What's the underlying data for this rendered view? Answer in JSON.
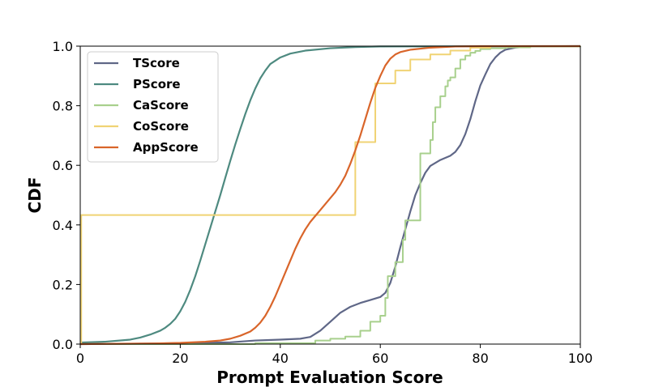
{
  "chart_data": {
    "type": "line",
    "title": "",
    "xlabel": "Prompt Evaluation Score",
    "ylabel": "CDF",
    "xlim": [
      0,
      100
    ],
    "ylim": [
      0,
      1.0
    ],
    "xticks": [
      "0",
      "20",
      "40",
      "60",
      "80",
      "100"
    ],
    "yticks": [
      "0.0",
      "0.2",
      "0.4",
      "0.6",
      "0.8",
      "1.0"
    ],
    "grid": false,
    "legend_position": "top-left",
    "series": [
      {
        "name": "TScore",
        "color": "#5f6787",
        "step": false,
        "points": [
          [
            0,
            0
          ],
          [
            10,
            0.001
          ],
          [
            20,
            0.003
          ],
          [
            30,
            0.006
          ],
          [
            35,
            0.012
          ],
          [
            40,
            0.015
          ],
          [
            44,
            0.018
          ],
          [
            46,
            0.024
          ],
          [
            48,
            0.045
          ],
          [
            50,
            0.075
          ],
          [
            52,
            0.105
          ],
          [
            54,
            0.125
          ],
          [
            56,
            0.138
          ],
          [
            58,
            0.148
          ],
          [
            60,
            0.158
          ],
          [
            61,
            0.172
          ],
          [
            62,
            0.205
          ],
          [
            63,
            0.26
          ],
          [
            64,
            0.325
          ],
          [
            65,
            0.385
          ],
          [
            66,
            0.445
          ],
          [
            67,
            0.5
          ],
          [
            68,
            0.54
          ],
          [
            69,
            0.575
          ],
          [
            70,
            0.598
          ],
          [
            72,
            0.618
          ],
          [
            74,
            0.632
          ],
          [
            75,
            0.645
          ],
          [
            76,
            0.668
          ],
          [
            77,
            0.705
          ],
          [
            78,
            0.755
          ],
          [
            79,
            0.815
          ],
          [
            80,
            0.868
          ],
          [
            81,
            0.905
          ],
          [
            82,
            0.94
          ],
          [
            83,
            0.962
          ],
          [
            84,
            0.978
          ],
          [
            85,
            0.988
          ],
          [
            87,
            0.995
          ],
          [
            90,
            0.999
          ],
          [
            100,
            1.0
          ]
        ]
      },
      {
        "name": "PScore",
        "color": "#4e8a80",
        "step": false,
        "points": [
          [
            0,
            0.005
          ],
          [
            5,
            0.008
          ],
          [
            10,
            0.015
          ],
          [
            12,
            0.022
          ],
          [
            14,
            0.032
          ],
          [
            16,
            0.045
          ],
          [
            17,
            0.055
          ],
          [
            18,
            0.068
          ],
          [
            19,
            0.085
          ],
          [
            20,
            0.11
          ],
          [
            21,
            0.142
          ],
          [
            22,
            0.182
          ],
          [
            23,
            0.228
          ],
          [
            24,
            0.28
          ],
          [
            25,
            0.335
          ],
          [
            26,
            0.39
          ],
          [
            27,
            0.445
          ],
          [
            28,
            0.5
          ],
          [
            29,
            0.558
          ],
          [
            30,
            0.615
          ],
          [
            31,
            0.67
          ],
          [
            32,
            0.722
          ],
          [
            33,
            0.772
          ],
          [
            34,
            0.818
          ],
          [
            35,
            0.858
          ],
          [
            36,
            0.892
          ],
          [
            37,
            0.918
          ],
          [
            38,
            0.94
          ],
          [
            40,
            0.962
          ],
          [
            42,
            0.975
          ],
          [
            45,
            0.985
          ],
          [
            50,
            0.993
          ],
          [
            55,
            0.997
          ],
          [
            60,
            0.999
          ],
          [
            100,
            1.0
          ]
        ]
      },
      {
        "name": "CaScore",
        "color": "#a8d08d",
        "step": true,
        "points": [
          [
            0,
            0.0
          ],
          [
            35,
            0.003
          ],
          [
            47,
            0.012
          ],
          [
            50,
            0.018
          ],
          [
            53,
            0.025
          ],
          [
            56,
            0.045
          ],
          [
            58,
            0.075
          ],
          [
            60,
            0.095
          ],
          [
            61,
            0.155
          ],
          [
            61.5,
            0.228
          ],
          [
            63,
            0.275
          ],
          [
            64.5,
            0.35
          ],
          [
            65,
            0.415
          ],
          [
            68,
            0.64
          ],
          [
            70,
            0.685
          ],
          [
            70.5,
            0.745
          ],
          [
            71,
            0.795
          ],
          [
            72,
            0.832
          ],
          [
            73,
            0.865
          ],
          [
            73.5,
            0.885
          ],
          [
            74,
            0.895
          ],
          [
            75,
            0.925
          ],
          [
            76,
            0.955
          ],
          [
            77,
            0.968
          ],
          [
            78,
            0.978
          ],
          [
            79,
            0.984
          ],
          [
            80,
            0.99
          ],
          [
            82,
            0.993
          ],
          [
            85,
            0.996
          ],
          [
            90,
            0.999
          ],
          [
            100,
            1.0
          ]
        ]
      },
      {
        "name": "CoScore",
        "color": "#f0d374",
        "step": true,
        "points": [
          [
            0,
            0.0
          ],
          [
            0.2,
            0.433
          ],
          [
            55,
            0.453
          ],
          [
            55,
            0.678
          ],
          [
            59,
            0.678
          ],
          [
            59,
            0.875
          ],
          [
            63,
            0.918
          ],
          [
            66,
            0.955
          ],
          [
            70,
            0.972
          ],
          [
            74,
            0.985
          ],
          [
            78,
            0.995
          ],
          [
            82,
            1.0
          ],
          [
            100,
            1.0
          ]
        ]
      },
      {
        "name": "AppScore",
        "color": "#d9652a",
        "step": false,
        "points": [
          [
            0,
            0.0
          ],
          [
            15,
            0.002
          ],
          [
            20,
            0.004
          ],
          [
            25,
            0.008
          ],
          [
            28,
            0.012
          ],
          [
            30,
            0.018
          ],
          [
            32,
            0.028
          ],
          [
            34,
            0.042
          ],
          [
            35,
            0.055
          ],
          [
            36,
            0.072
          ],
          [
            37,
            0.095
          ],
          [
            38,
            0.125
          ],
          [
            39,
            0.16
          ],
          [
            40,
            0.2
          ],
          [
            41,
            0.24
          ],
          [
            42,
            0.28
          ],
          [
            43,
            0.32
          ],
          [
            44,
            0.355
          ],
          [
            45,
            0.385
          ],
          [
            46,
            0.41
          ],
          [
            47,
            0.43
          ],
          [
            48,
            0.45
          ],
          [
            49,
            0.47
          ],
          [
            50,
            0.49
          ],
          [
            51,
            0.51
          ],
          [
            52,
            0.535
          ],
          [
            53,
            0.565
          ],
          [
            54,
            0.605
          ],
          [
            55,
            0.65
          ],
          [
            56,
            0.7
          ],
          [
            57,
            0.755
          ],
          [
            58,
            0.81
          ],
          [
            59,
            0.86
          ],
          [
            60,
            0.9
          ],
          [
            61,
            0.935
          ],
          [
            62,
            0.958
          ],
          [
            63,
            0.972
          ],
          [
            64,
            0.98
          ],
          [
            66,
            0.988
          ],
          [
            70,
            0.995
          ],
          [
            75,
            0.999
          ],
          [
            80,
            1.0
          ],
          [
            100,
            1.0
          ]
        ]
      }
    ]
  }
}
